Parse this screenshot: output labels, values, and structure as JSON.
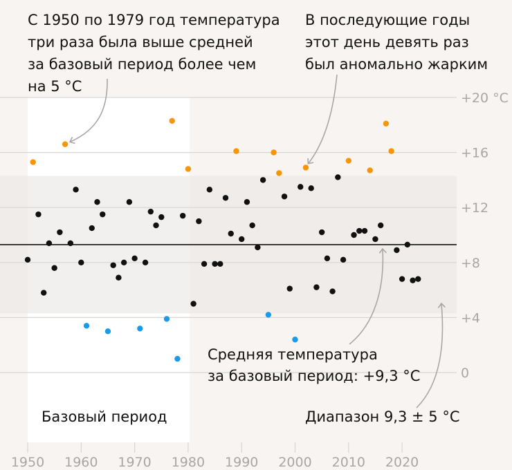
{
  "chart_data": {
    "type": "scatter",
    "x_range": [
      1950,
      2029
    ],
    "ylim": [
      -4,
      22
    ],
    "y_ticks": [
      {
        "value": 20,
        "label": "+20 °C"
      },
      {
        "value": 16,
        "label": "+16"
      },
      {
        "value": 12,
        "label": "+12"
      },
      {
        "value": 8,
        "label": "+8"
      },
      {
        "value": 4,
        "label": "+4"
      },
      {
        "value": 0,
        "label": "0"
      }
    ],
    "x_ticks": [
      {
        "value": 1950,
        "label": "1950"
      },
      {
        "value": 1960,
        "label": "1960"
      },
      {
        "value": 1970,
        "label": "1970"
      },
      {
        "value": 1980,
        "label": "1980"
      },
      {
        "value": 1990,
        "label": "1990"
      },
      {
        "value": 2000,
        "label": "2000"
      },
      {
        "value": 2010,
        "label": "2010"
      },
      {
        "value": 2020,
        "label": "2020"
      }
    ],
    "mean": 9.3,
    "band": [
      4.3,
      14.3
    ],
    "base_period": [
      1950,
      1979
    ],
    "colors": {
      "normal": "#111111",
      "hot": "#f5960a",
      "cold": "#1a9be8",
      "band": "#ebe8e5",
      "base_period": "#ffffff",
      "grid": "#d8d6d3",
      "mean_line": "#111111",
      "arrow": "#a9a6a3"
    },
    "points": [
      {
        "x": 1950,
        "y": 8.2,
        "cat": "normal"
      },
      {
        "x": 1951,
        "y": 15.3,
        "cat": "hot"
      },
      {
        "x": 1952,
        "y": 11.5,
        "cat": "normal"
      },
      {
        "x": 1953,
        "y": 5.8,
        "cat": "normal"
      },
      {
        "x": 1954,
        "y": 9.4,
        "cat": "normal"
      },
      {
        "x": 1955,
        "y": 7.6,
        "cat": "normal"
      },
      {
        "x": 1956,
        "y": 10.2,
        "cat": "normal"
      },
      {
        "x": 1957,
        "y": 16.6,
        "cat": "hot"
      },
      {
        "x": 1958,
        "y": 9.4,
        "cat": "normal"
      },
      {
        "x": 1959,
        "y": 13.3,
        "cat": "normal"
      },
      {
        "x": 1960,
        "y": 8.0,
        "cat": "normal"
      },
      {
        "x": 1961,
        "y": 3.4,
        "cat": "cold"
      },
      {
        "x": 1962,
        "y": 10.5,
        "cat": "normal"
      },
      {
        "x": 1963,
        "y": 12.4,
        "cat": "normal"
      },
      {
        "x": 1964,
        "y": 11.5,
        "cat": "normal"
      },
      {
        "x": 1965,
        "y": 3.0,
        "cat": "cold"
      },
      {
        "x": 1966,
        "y": 7.8,
        "cat": "normal"
      },
      {
        "x": 1967,
        "y": 6.9,
        "cat": "normal"
      },
      {
        "x": 1968,
        "y": 8.0,
        "cat": "normal"
      },
      {
        "x": 1969,
        "y": 12.4,
        "cat": "normal"
      },
      {
        "x": 1970,
        "y": 8.3,
        "cat": "normal"
      },
      {
        "x": 1971,
        "y": 3.2,
        "cat": "cold"
      },
      {
        "x": 1972,
        "y": 8.0,
        "cat": "normal"
      },
      {
        "x": 1973,
        "y": 11.7,
        "cat": "normal"
      },
      {
        "x": 1974,
        "y": 10.7,
        "cat": "normal"
      },
      {
        "x": 1975,
        "y": 11.3,
        "cat": "normal"
      },
      {
        "x": 1976,
        "y": 3.9,
        "cat": "cold"
      },
      {
        "x": 1977,
        "y": 18.3,
        "cat": "hot"
      },
      {
        "x": 1978,
        "y": 1.0,
        "cat": "cold"
      },
      {
        "x": 1979,
        "y": 11.4,
        "cat": "normal"
      },
      {
        "x": 1980,
        "y": 14.8,
        "cat": "hot"
      },
      {
        "x": 1981,
        "y": 5.0,
        "cat": "normal"
      },
      {
        "x": 1982,
        "y": 11.0,
        "cat": "normal"
      },
      {
        "x": 1983,
        "y": 7.9,
        "cat": "normal"
      },
      {
        "x": 1984,
        "y": 13.3,
        "cat": "normal"
      },
      {
        "x": 1985,
        "y": 7.9,
        "cat": "normal"
      },
      {
        "x": 1986,
        "y": 7.9,
        "cat": "normal"
      },
      {
        "x": 1987,
        "y": 12.7,
        "cat": "normal"
      },
      {
        "x": 1988,
        "y": 10.1,
        "cat": "normal"
      },
      {
        "x": 1989,
        "y": 16.1,
        "cat": "hot"
      },
      {
        "x": 1990,
        "y": 9.7,
        "cat": "normal"
      },
      {
        "x": 1991,
        "y": 12.4,
        "cat": "normal"
      },
      {
        "x": 1992,
        "y": 10.7,
        "cat": "normal"
      },
      {
        "x": 1993,
        "y": 9.1,
        "cat": "normal"
      },
      {
        "x": 1994,
        "y": 14.0,
        "cat": "normal"
      },
      {
        "x": 1995,
        "y": 4.2,
        "cat": "cold"
      },
      {
        "x": 1996,
        "y": 16.0,
        "cat": "hot"
      },
      {
        "x": 1997,
        "y": 14.5,
        "cat": "hot"
      },
      {
        "x": 1998,
        "y": 12.8,
        "cat": "normal"
      },
      {
        "x": 1999,
        "y": 6.1,
        "cat": "normal"
      },
      {
        "x": 2000,
        "y": 2.4,
        "cat": "cold"
      },
      {
        "x": 2001,
        "y": 13.5,
        "cat": "normal"
      },
      {
        "x": 2002,
        "y": 14.9,
        "cat": "hot"
      },
      {
        "x": 2003,
        "y": 13.4,
        "cat": "normal"
      },
      {
        "x": 2004,
        "y": 6.2,
        "cat": "normal"
      },
      {
        "x": 2005,
        "y": 10.2,
        "cat": "normal"
      },
      {
        "x": 2006,
        "y": 8.3,
        "cat": "normal"
      },
      {
        "x": 2007,
        "y": 5.9,
        "cat": "normal"
      },
      {
        "x": 2008,
        "y": 14.2,
        "cat": "normal"
      },
      {
        "x": 2009,
        "y": 8.2,
        "cat": "normal"
      },
      {
        "x": 2010,
        "y": 15.4,
        "cat": "hot"
      },
      {
        "x": 2011,
        "y": 10.0,
        "cat": "normal"
      },
      {
        "x": 2012,
        "y": 10.3,
        "cat": "normal"
      },
      {
        "x": 2013,
        "y": 10.3,
        "cat": "normal"
      },
      {
        "x": 2014,
        "y": 14.7,
        "cat": "hot"
      },
      {
        "x": 2015,
        "y": 9.7,
        "cat": "normal"
      },
      {
        "x": 2016,
        "y": 10.7,
        "cat": "normal"
      },
      {
        "x": 2017,
        "y": 18.1,
        "cat": "hot"
      },
      {
        "x": 2018,
        "y": 16.1,
        "cat": "hot"
      },
      {
        "x": 2019,
        "y": 8.9,
        "cat": "normal"
      },
      {
        "x": 2020,
        "y": 6.8,
        "cat": "normal"
      },
      {
        "x": 2021,
        "y": 9.3,
        "cat": "normal"
      },
      {
        "x": 2022,
        "y": 6.7,
        "cat": "normal"
      },
      {
        "x": 2023,
        "y": 6.8,
        "cat": "normal"
      }
    ],
    "annotations": {
      "left_top": [
        "С 1950 по 1979 год температура",
        "три раза была выше средней",
        "за базовый период более чем",
        "на 5 °С"
      ],
      "right_top": [
        "В последующие годы",
        "этот день девять раз",
        "был аномально жарким"
      ],
      "mean_label": [
        "Средняя температура",
        "за базовый период: +9,3 °С"
      ],
      "range_label": "Диапазон 9,3 ± 5 °С",
      "base_label": "Базовый период"
    }
  }
}
